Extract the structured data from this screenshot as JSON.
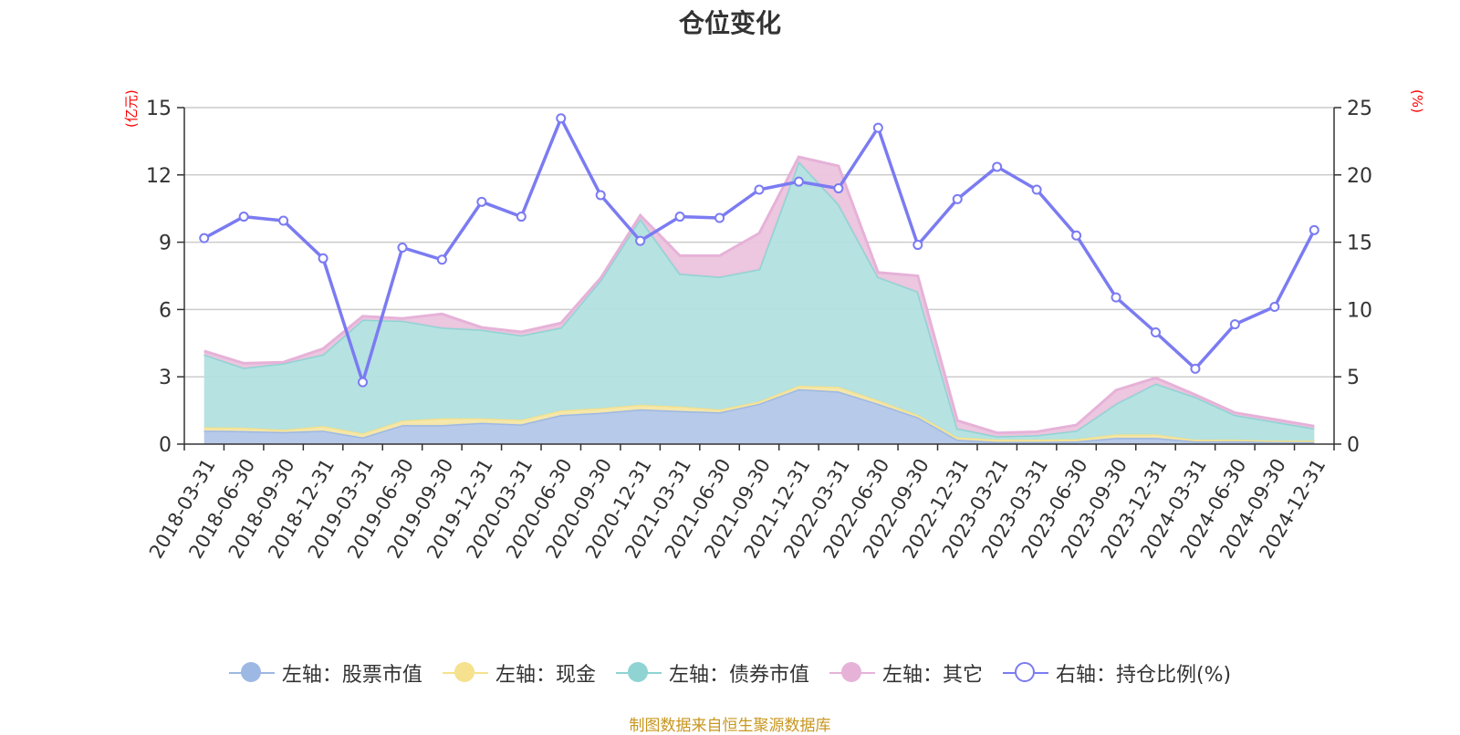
{
  "chart_data": {
    "type": "area",
    "title": "仓位变化",
    "left_axis_unit": "(亿元)",
    "right_axis_unit": "(%)",
    "left_ylim": [
      0,
      15
    ],
    "left_ticks": [
      0,
      3,
      6,
      9,
      12,
      15
    ],
    "right_ylim": [
      0,
      25
    ],
    "right_ticks": [
      0,
      5,
      10,
      15,
      20,
      25
    ],
    "grid": true,
    "categories": [
      "2018-03-31",
      "2018-06-30",
      "2018-09-30",
      "2018-12-31",
      "2019-03-31",
      "2019-06-30",
      "2019-09-30",
      "2019-12-31",
      "2020-03-31",
      "2020-06-30",
      "2020-09-30",
      "2020-12-31",
      "2021-03-31",
      "2021-06-30",
      "2021-09-30",
      "2021-12-31",
      "2022-03-31",
      "2022-06-30",
      "2022-09-30",
      "2022-12-31",
      "2023-03-21",
      "2023-03-31",
      "2023-06-30",
      "2023-09-30",
      "2023-12-31",
      "2024-03-31",
      "2024-06-30",
      "2024-09-30",
      "2024-12-31"
    ],
    "series": [
      {
        "name": "左轴：股票市值",
        "axis": "left",
        "kind": "stacked-area",
        "color": "#9db8e3",
        "fill": "#b3c7e8",
        "values": [
          0.6,
          0.58,
          0.54,
          0.6,
          0.3,
          0.85,
          0.85,
          0.95,
          0.88,
          1.3,
          1.4,
          1.55,
          1.48,
          1.42,
          1.8,
          2.45,
          2.35,
          1.8,
          1.2,
          0.2,
          0.1,
          0.1,
          0.12,
          0.28,
          0.28,
          0.12,
          0.13,
          0.1,
          0.1
        ]
      },
      {
        "name": "左轴：现金",
        "axis": "left",
        "kind": "stacked-area",
        "color": "#f5e18e",
        "fill": "#f6e7a8",
        "values": [
          0.15,
          0.15,
          0.1,
          0.2,
          0.18,
          0.2,
          0.3,
          0.2,
          0.2,
          0.2,
          0.2,
          0.2,
          0.2,
          0.12,
          0.1,
          0.15,
          0.2,
          0.15,
          0.1,
          0.1,
          0.1,
          0.1,
          0.1,
          0.15,
          0.15,
          0.07,
          0.07,
          0.05,
          0.05
        ]
      },
      {
        "name": "左轴：债券市值",
        "axis": "left",
        "kind": "stacked-area",
        "color": "#8fd3d3",
        "fill": "#b2e0e0",
        "values": [
          3.25,
          2.67,
          2.96,
          3.2,
          5.07,
          4.45,
          4.05,
          3.95,
          3.77,
          3.7,
          5.7,
          8.3,
          5.92,
          5.92,
          5.9,
          10.0,
          8.15,
          5.5,
          5.5,
          0.4,
          0.15,
          0.2,
          0.38,
          1.37,
          2.27,
          1.91,
          1.1,
          0.85,
          0.55
        ]
      },
      {
        "name": "左轴：其它",
        "axis": "left",
        "kind": "stacked-area",
        "color": "#e6b2d8",
        "fill": "#ecc4de",
        "values": [
          0.15,
          0.2,
          0.05,
          0.25,
          0.15,
          0.1,
          0.6,
          0.1,
          0.15,
          0.2,
          0.1,
          0.15,
          0.8,
          0.94,
          1.6,
          0.2,
          1.7,
          0.2,
          0.7,
          0.35,
          0.15,
          0.15,
          0.25,
          0.6,
          0.25,
          0.1,
          0.1,
          0.1,
          0.1
        ]
      },
      {
        "name": "右轴：持仓比例(%)",
        "axis": "right",
        "kind": "line",
        "color": "#7b7bf2",
        "values": [
          15.3,
          16.9,
          16.6,
          13.8,
          4.6,
          14.6,
          13.7,
          18.0,
          16.9,
          24.2,
          18.5,
          15.1,
          16.9,
          16.8,
          18.9,
          19.5,
          19.0,
          23.5,
          14.8,
          18.2,
          20.6,
          18.9,
          15.5,
          10.9,
          8.3,
          5.6,
          8.9,
          10.2,
          15.9
        ]
      }
    ],
    "source_note": "制图数据来自恒生聚源数据库",
    "source_color": "#c8961e",
    "unit_color": "#ff0000"
  }
}
